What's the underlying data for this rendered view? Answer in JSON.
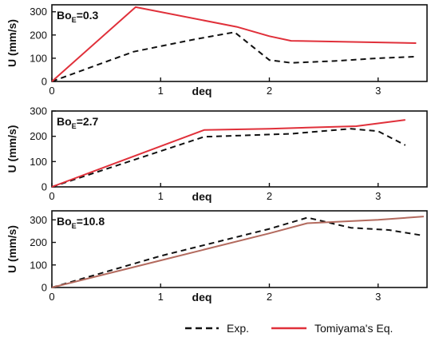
{
  "colors": {
    "exp": "#111111",
    "tomiyama": "#e0303a",
    "tomiyama_panel3": "#b36a5e",
    "axis": "#111111"
  },
  "legend": {
    "exp_label": "Exp.",
    "tomiyama_label": "Tomiyama's Eq."
  },
  "chart_data": [
    {
      "type": "line",
      "panel_label_main": "Bo",
      "panel_label_sub": "E",
      "panel_label_value": "=0.3",
      "xlabel": "deq",
      "ylabel": "U (mm/s)",
      "xlim": [
        0,
        3.45
      ],
      "ylim": [
        0,
        330
      ],
      "xticks": [
        0,
        1,
        2,
        3
      ],
      "yticks": [
        0,
        100,
        200,
        300
      ],
      "series": [
        {
          "name": "Exp.",
          "style": "dashed",
          "color": "#111111",
          "x": [
            0,
            0.75,
            1.3,
            1.68,
            2.0,
            2.2,
            2.6,
            3.0,
            3.35
          ],
          "y": [
            0,
            128,
            180,
            212,
            92,
            80,
            88,
            100,
            107
          ]
        },
        {
          "name": "Tomiyama's Eq.",
          "style": "solid",
          "color": "#e0303a",
          "x": [
            0,
            0.77,
            1.7,
            2.0,
            2.2,
            3.35
          ],
          "y": [
            0,
            320,
            235,
            195,
            175,
            165
          ]
        }
      ]
    },
    {
      "type": "line",
      "panel_label_main": "Bo",
      "panel_label_sub": "E",
      "panel_label_value": "=2.7",
      "xlabel": "deq",
      "ylabel": "U (mm/s)",
      "xlim": [
        0,
        3.45
      ],
      "ylim": [
        0,
        300
      ],
      "xticks": [
        0,
        1,
        2,
        3
      ],
      "yticks": [
        0,
        100,
        200,
        300
      ],
      "series": [
        {
          "name": "Exp.",
          "style": "dashed",
          "color": "#111111",
          "x": [
            0,
            1.4,
            2.2,
            2.75,
            3.0,
            3.25
          ],
          "y": [
            0,
            198,
            210,
            230,
            220,
            165
          ]
        },
        {
          "name": "Tomiyama's Eq.",
          "style": "solid",
          "color": "#e0303a",
          "x": [
            0,
            1.4,
            2.0,
            2.8,
            3.25
          ],
          "y": [
            0,
            225,
            230,
            240,
            265
          ]
        }
      ]
    },
    {
      "type": "line",
      "panel_label_main": "Bo",
      "panel_label_sub": "E",
      "panel_label_value": "=10.8",
      "xlabel": "deq",
      "ylabel": "U (mm/s)",
      "xlim": [
        0,
        3.45
      ],
      "ylim": [
        0,
        340
      ],
      "xticks": [
        0,
        1,
        2,
        3
      ],
      "yticks": [
        0,
        100,
        200,
        300
      ],
      "series": [
        {
          "name": "Exp.",
          "style": "dashed",
          "color": "#111111",
          "x": [
            0,
            1.0,
            2.0,
            2.35,
            2.75,
            3.1,
            3.42
          ],
          "y": [
            0,
            140,
            260,
            310,
            265,
            255,
            230
          ]
        },
        {
          "name": "Tomiyama's Eq.",
          "style": "solid",
          "color": "#b36a5e",
          "x": [
            0,
            1.0,
            2.0,
            2.35,
            3.0,
            3.42
          ],
          "y": [
            0,
            120,
            240,
            285,
            300,
            315
          ]
        }
      ]
    }
  ]
}
